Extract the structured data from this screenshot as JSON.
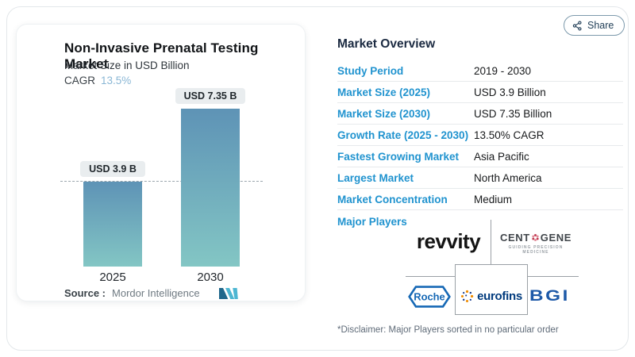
{
  "share": {
    "label": "Share"
  },
  "chart_card": {
    "title": "Non-Invasive Prenatal Testing Market",
    "subtitle": "Market Size in USD Billion",
    "cagr_label": "CAGR",
    "cagr_value": "13.5%",
    "source_label": "Source :",
    "source_value": "Mordor Intelligence"
  },
  "chart_data": {
    "type": "bar",
    "title": "Non-Invasive Prenatal Testing Market",
    "ylabel": "Market Size in USD Billion",
    "categories": [
      "2025",
      "2030"
    ],
    "values": [
      3.9,
      7.35
    ],
    "value_labels": [
      "USD 3.9 B",
      "USD 7.35 B"
    ],
    "cagr": "13.5%",
    "reference_line": 3.9,
    "grid": "off",
    "bar_gradient": [
      "#5e93b6",
      "#83c6c4"
    ]
  },
  "overview": {
    "title": "Market Overview",
    "rows": [
      {
        "label": "Study Period",
        "value": "2019 - 2030"
      },
      {
        "label": "Market Size (2025)",
        "value": "USD 3.9 Billion"
      },
      {
        "label": "Market Size (2030)",
        "value": "USD 7.35 Billion"
      },
      {
        "label": "Growth Rate (2025 - 2030)",
        "value": "13.50% CAGR"
      },
      {
        "label": "Fastest Growing Market",
        "value": "Asia Pacific"
      },
      {
        "label": "Largest Market",
        "value": "North America"
      },
      {
        "label": "Market Concentration",
        "value": "Medium"
      }
    ]
  },
  "players": {
    "section_label": "Major Players",
    "revvity": "revvity",
    "centogene_prefix": "CENT",
    "centogene_suffix": "GENE",
    "centogene_tagline": "GUIDING PRECISION MEDICINE",
    "roche": "Roche",
    "eurofins": "eurofins",
    "bgi": "BGI",
    "disclaimer": "*Disclaimer: Major Players sorted in no particular order"
  },
  "icons": {
    "share": "share-nodes-icon",
    "mordor_logo": "mordor-intelligence-m-mark",
    "centogene_flower": "red-flower-o-mark",
    "eurofins_dots": "dotted-spiral-mark",
    "roche_hexagon": "blue-hexagon-wordmark"
  },
  "colors": {
    "row_label_blue": "#2093cf",
    "navy_heading": "#1b2a41",
    "cagr_accent": "#8ab7d5",
    "bar_top": "#5e93b6",
    "bar_bottom": "#83c6c4",
    "roche_blue": "#1668b5",
    "bgi_blue": "#1d59a8",
    "eurofins_blue": "#003a7d",
    "centogene_red": "#c13a52"
  }
}
